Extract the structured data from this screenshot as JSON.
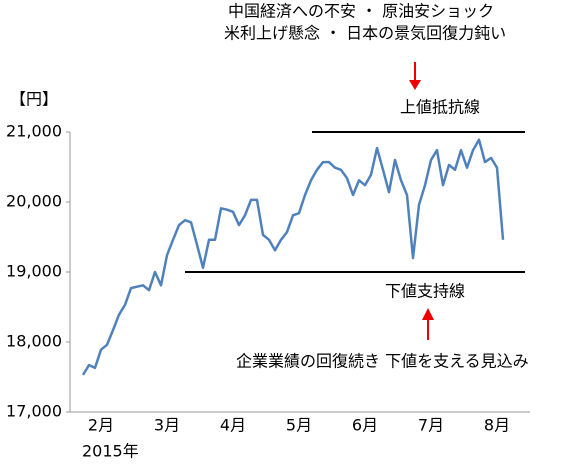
{
  "chart_data": {
    "type": "line",
    "ylabel": "【円】",
    "xlabel": "2015年",
    "categories": [
      null,
      null,
      null,
      "2月",
      null,
      null,
      null,
      null,
      null,
      null,
      null,
      null,
      null,
      null,
      "3月",
      null,
      null,
      null,
      null,
      null,
      null,
      null,
      null,
      null,
      null,
      "4月",
      null,
      null,
      null,
      null,
      null,
      null,
      null,
      null,
      null,
      null,
      "5月",
      null,
      null,
      null,
      null,
      null,
      null,
      null,
      null,
      null,
      null,
      "6月",
      null,
      null,
      null,
      null,
      null,
      null,
      null,
      null,
      null,
      null,
      "7月",
      null,
      null,
      null,
      null,
      null,
      null,
      null,
      null,
      null,
      null,
      "8月",
      null
    ],
    "series": [
      {
        "color": "#4f81bd",
        "values": [
          17530,
          17670,
          17630,
          17890,
          17960,
          18170,
          18390,
          18530,
          18770,
          18790,
          18810,
          18740,
          19000,
          18810,
          19240,
          19460,
          19670,
          19740,
          19710,
          19390,
          19060,
          19460,
          19460,
          19910,
          19890,
          19860,
          19670,
          19810,
          20030,
          20030,
          19530,
          19460,
          19310,
          19460,
          19570,
          19810,
          19840,
          20100,
          20310,
          20460,
          20570,
          20570,
          20490,
          20460,
          20340,
          20100,
          20310,
          20240,
          20390,
          20770,
          20460,
          20140,
          20600,
          20310,
          20100,
          19200,
          19960,
          20240,
          20600,
          20740,
          20240,
          20530,
          20460,
          20740,
          20490,
          20740,
          20890,
          20570,
          20630,
          20490,
          19460
        ]
      }
    ],
    "ylim": [
      17000,
      21000
    ],
    "yticks": [
      {
        "value": 17000,
        "label": "17,000"
      },
      {
        "value": 18000,
        "label": "18,000"
      },
      {
        "value": 19000,
        "label": "19,000"
      },
      {
        "value": 20000,
        "label": "20,000"
      },
      {
        "value": 21000,
        "label": "21,000"
      }
    ],
    "grid": false,
    "reference_lines": [
      {
        "value": 21000,
        "label": "上値抵抗線",
        "color": "#000000"
      },
      {
        "value": 19000,
        "label": "下値支持線",
        "color": "#000000"
      }
    ],
    "annotations": [
      "中国経済への不安 ・ 原油安ショック",
      "米利上げ懸念 ・ 日本の景気回復力鈍い",
      "企業業績の回復続き 下値を支える見込み"
    ]
  }
}
